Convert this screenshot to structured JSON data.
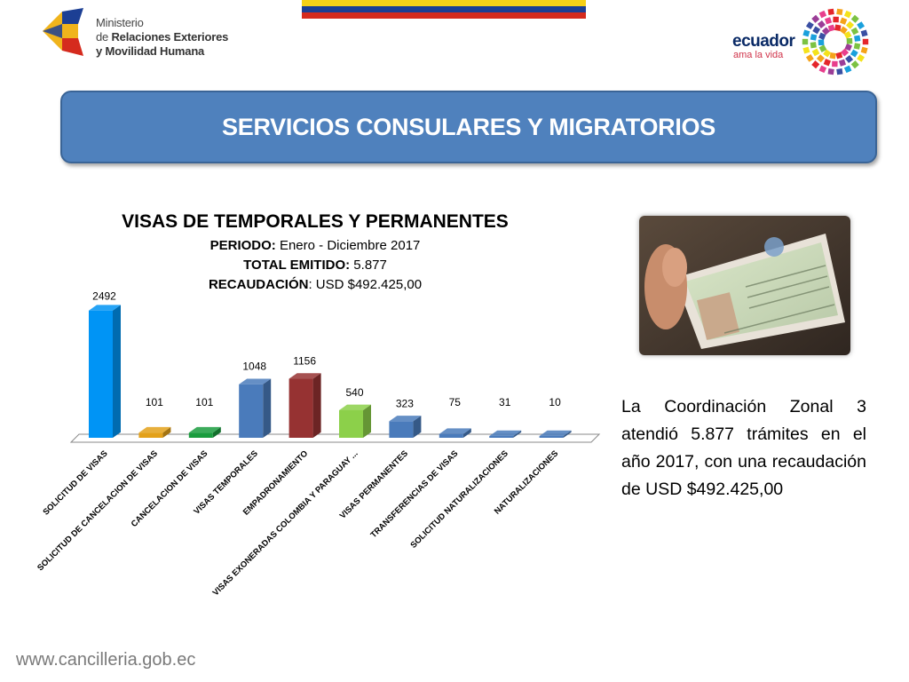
{
  "ministry": {
    "line1": "Ministerio",
    "line2_prefix": "de ",
    "line2_bold": "Relaciones Exteriores",
    "line3": "y Movilidad Humana"
  },
  "brand": {
    "word": "ecuador",
    "tagline": "ama la vida"
  },
  "banner": {
    "title": "SERVICIOS CONSULARES Y MIGRATORIOS",
    "color": "#4f81bd"
  },
  "chart_header": {
    "title": "VISAS DE TEMPORALES Y PERMANENTES",
    "period_label": "PERIODO:",
    "period_value": " Enero - Diciembre 2017",
    "total_label": "TOTAL EMITIDO:",
    "total_value": "  5.877",
    "revenue_label": "RECAUDACIÓN",
    "revenue_value": ": USD $492.425,00"
  },
  "chart_data": {
    "type": "bar",
    "categories": [
      "SOLICITUD DE VISAS",
      "SOLICITUD DE CANCELACION DE VISAS",
      "CANCELACION DE VISAS",
      "VISAS TEMPORALES",
      "EMPADRONAMIENTO",
      "VISAS EXONERADAS COLOMBIA Y PARAGUAY ...",
      "VISAS PERMANENTES",
      "TRANSFERENCIAS DE VISAS",
      "SOLICITUD NATURALIZACIONES",
      "NATURALIZACIONES"
    ],
    "values": [
      2492,
      101,
      101,
      1048,
      1156,
      540,
      323,
      75,
      31,
      10
    ],
    "colors": [
      "#0094f5",
      "#e3a11a",
      "#1a9c3e",
      "#4a7bbb",
      "#963232",
      "#8cd04a",
      "#4a7bbb",
      "#4a7bbb",
      "#4a7bbb",
      "#4a7bbb"
    ],
    "title": "VISAS DE TEMPORALES Y PERMANENTES",
    "grid": false
  },
  "description": "La Coordinación Zonal 3 atendió 5.877 trámites en el año 2017, con una recaudación de USD $492.425,00",
  "footer": {
    "url": "www.cancilleria.gob.ec"
  }
}
